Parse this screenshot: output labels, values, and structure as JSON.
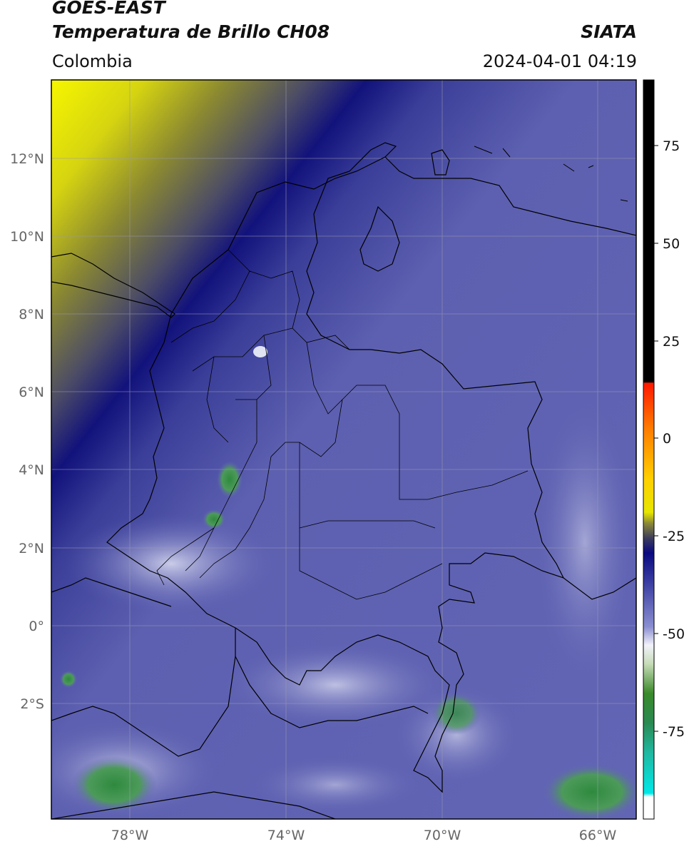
{
  "header": {
    "satellite": "GOES-EAST",
    "product": "Temperatura de Brillo CH08",
    "region": "Colombia",
    "source": "SIATA",
    "datetime": "2024-04-01 04:19"
  },
  "map": {
    "lat_ticks": [
      "12°N",
      "10°N",
      "8°N",
      "6°N",
      "4°N",
      "2°N",
      "0°",
      "2°S"
    ],
    "lon_ticks": [
      "78°W",
      "74°W",
      "70°W",
      "66°W"
    ]
  },
  "colorbar": {
    "ticks": [
      "75",
      "50",
      "25",
      "0",
      "-25",
      "-50",
      "-75"
    ],
    "colors": {
      "warm_dry": "#f2f200",
      "moist_mid": "#4a4a6e",
      "cold_band": "#0c0c7a",
      "cloud_top": "#6a6cb8",
      "very_cold": "#2e8a3e",
      "hot_top": "#000000",
      "red": "#ff2000",
      "cyan": "#00e0e0"
    }
  }
}
